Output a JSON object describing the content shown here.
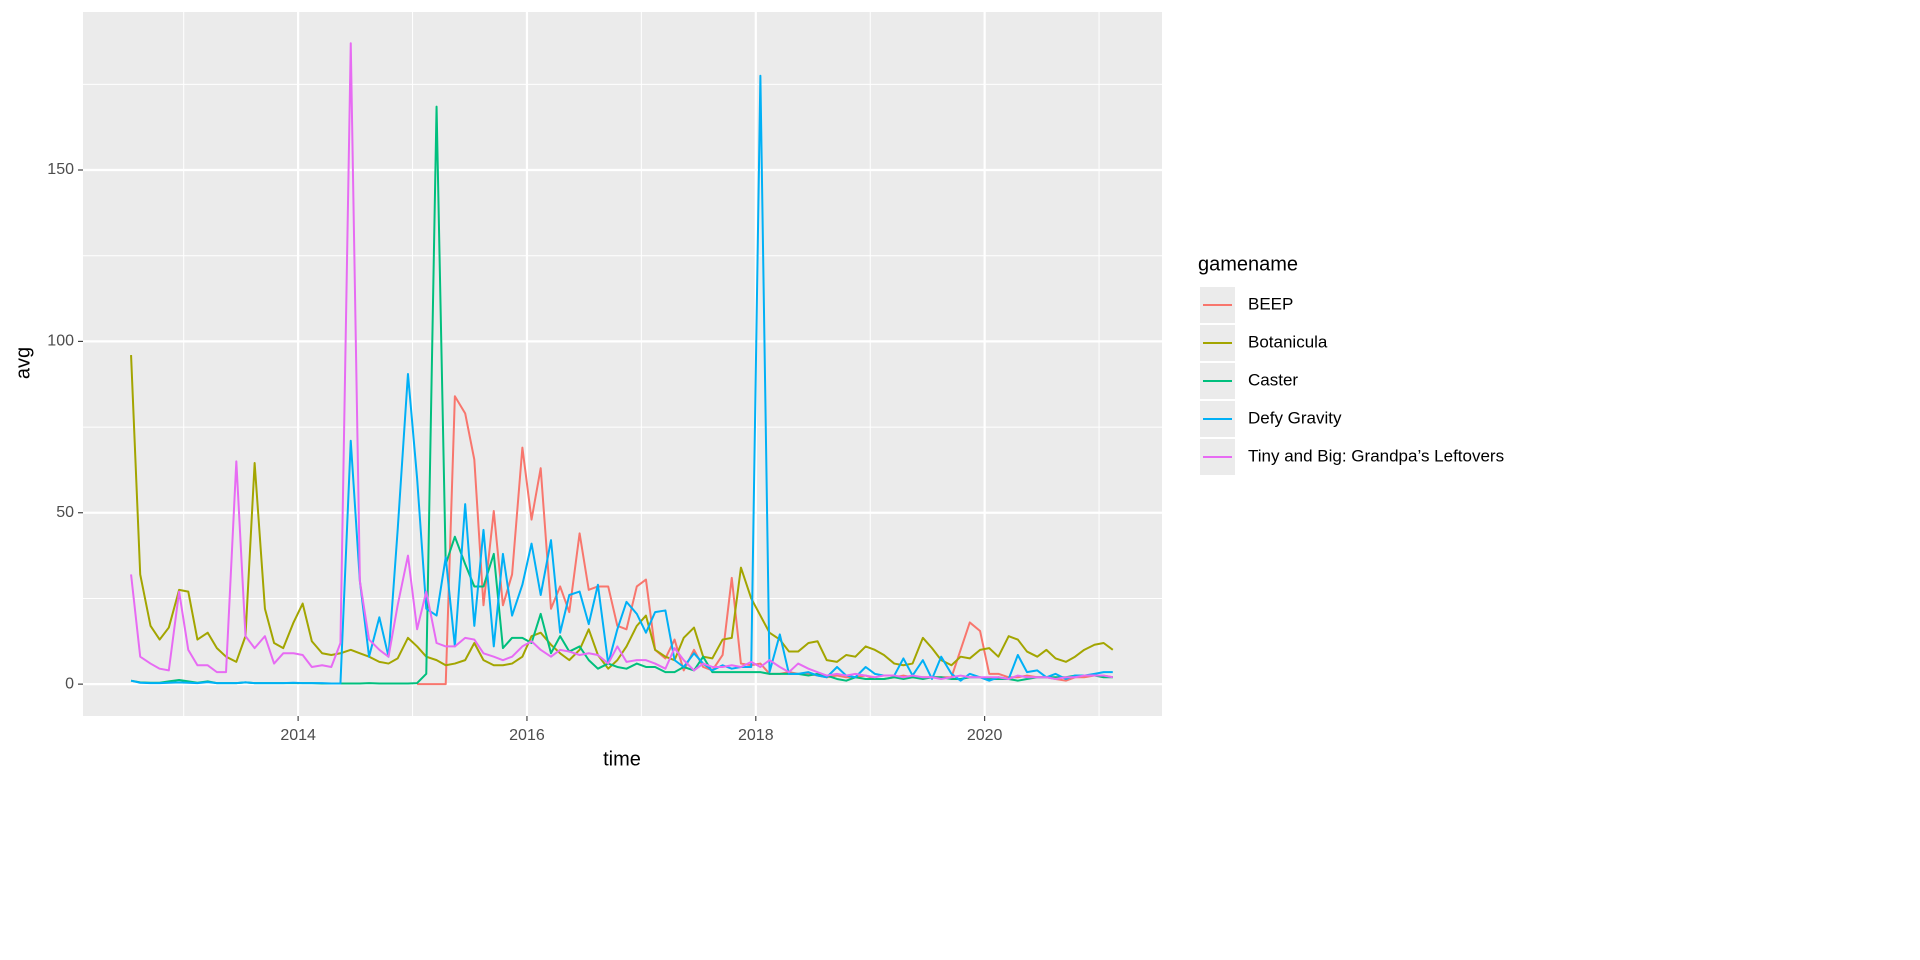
{
  "chart_data": {
    "type": "line",
    "x_label": "time",
    "y_label": "avg",
    "legend_title": "gamename",
    "grid": true,
    "legend_position": "right",
    "xlim": [
      2012.12,
      2021.55
    ],
    "ylim": [
      -9.3,
      196.1
    ],
    "xticks": [
      2014,
      2016,
      2018,
      2020
    ],
    "yticks": [
      0,
      50,
      100,
      150
    ],
    "x": [
      2012.54,
      2012.62,
      2012.71,
      2012.79,
      2012.87,
      2012.96,
      2013.04,
      2013.12,
      2013.21,
      2013.29,
      2013.37,
      2013.46,
      2013.54,
      2013.62,
      2013.71,
      2013.79,
      2013.87,
      2013.96,
      2014.04,
      2014.12,
      2014.21,
      2014.29,
      2014.37,
      2014.46,
      2014.54,
      2014.62,
      2014.71,
      2014.79,
      2014.87,
      2014.96,
      2015.04,
      2015.12,
      2015.21,
      2015.29,
      2015.37,
      2015.46,
      2015.54,
      2015.62,
      2015.71,
      2015.79,
      2015.87,
      2015.96,
      2016.04,
      2016.12,
      2016.21,
      2016.29,
      2016.37,
      2016.46,
      2016.54,
      2016.62,
      2016.71,
      2016.79,
      2016.87,
      2016.96,
      2017.04,
      2017.12,
      2017.21,
      2017.29,
      2017.37,
      2017.46,
      2017.54,
      2017.62,
      2017.71,
      2017.79,
      2017.87,
      2017.96,
      2018.04,
      2018.12,
      2018.21,
      2018.29,
      2018.37,
      2018.46,
      2018.54,
      2018.62,
      2018.71,
      2018.79,
      2018.87,
      2018.96,
      2019.04,
      2019.12,
      2019.21,
      2019.29,
      2019.37,
      2019.46,
      2019.54,
      2019.62,
      2019.71,
      2019.79,
      2019.87,
      2019.96,
      2020.04,
      2020.12,
      2020.21,
      2020.29,
      2020.37,
      2020.46,
      2020.54,
      2020.62,
      2020.71,
      2020.79,
      2020.87,
      2020.96,
      2021.04,
      2021.12
    ],
    "series": [
      {
        "name": "BEEP",
        "color": "#F8766D",
        "values": [
          null,
          null,
          null,
          null,
          null,
          null,
          null,
          null,
          null,
          null,
          null,
          null,
          null,
          null,
          null,
          null,
          null,
          null,
          null,
          null,
          null,
          null,
          null,
          null,
          null,
          null,
          null,
          null,
          null,
          null,
          0,
          0,
          0,
          0,
          84,
          79,
          65.5,
          23,
          50.5,
          23,
          32,
          69,
          48,
          63,
          22,
          28.5,
          21,
          44,
          27.5,
          28.5,
          28.5,
          17,
          16,
          28.5,
          30.5,
          10,
          7.5,
          13,
          4,
          10,
          5,
          4,
          8.5,
          31,
          6,
          5.5,
          6,
          3,
          3,
          3.5,
          3,
          3,
          2.5,
          2,
          2.5,
          2,
          2,
          2.5,
          1.5,
          1.5,
          2,
          2.5,
          2,
          2,
          2,
          2,
          2,
          10,
          18,
          15.5,
          3,
          3,
          2,
          2,
          2.5,
          2,
          2,
          1.5,
          1,
          2,
          2,
          2.5,
          2.5,
          2
        ]
      },
      {
        "name": "Botanicula",
        "color": "#A3A500",
        "values": [
          96,
          32,
          17,
          13,
          16.5,
          27.5,
          27,
          13,
          15,
          10.5,
          8,
          6.5,
          14,
          64.5,
          22,
          12,
          10.5,
          18,
          23.5,
          12.5,
          9,
          8.5,
          9,
          10,
          9,
          8,
          6.5,
          6,
          7.5,
          13.5,
          11,
          8,
          7,
          5.5,
          6,
          7,
          12,
          7,
          5.5,
          5.5,
          6,
          8,
          14,
          15,
          11.5,
          9,
          7,
          10,
          16,
          8.5,
          4.5,
          7,
          11,
          17,
          20,
          10,
          8,
          7,
          13.5,
          16.5,
          8,
          7.5,
          13,
          13.5,
          34,
          25,
          20,
          15,
          13,
          9.5,
          9.5,
          12,
          12.5,
          7,
          6.5,
          8.5,
          8,
          11,
          10,
          8.5,
          6,
          5.5,
          6,
          13.5,
          10.5,
          7,
          5.5,
          8,
          7.5,
          10,
          10.5,
          8,
          14,
          13,
          9.5,
          8,
          10,
          7.5,
          6.5,
          8,
          10,
          11.5,
          12,
          10
        ]
      },
      {
        "name": "Caster",
        "color": "#00BF7D",
        "values": [
          1,
          0.5,
          0.4,
          0.4,
          0.8,
          1.2,
          0.8,
          0.4,
          0.8,
          0.3,
          0.3,
          0.3,
          0.5,
          0.3,
          0.3,
          0.3,
          0.3,
          0.3,
          0.3,
          0.3,
          0.2,
          0.2,
          0.2,
          0.2,
          0.2,
          0.3,
          0.2,
          0.2,
          0.2,
          0.2,
          0.3,
          3,
          168.5,
          35,
          43,
          35,
          28.5,
          28.5,
          38,
          10.5,
          13.5,
          13.5,
          12,
          20.5,
          9,
          14,
          9.5,
          11,
          7,
          4.5,
          6,
          5,
          4.5,
          6,
          5,
          5,
          3.5,
          3.5,
          5,
          4,
          8,
          3.5,
          3.5,
          3.5,
          3.5,
          3.5,
          3.5,
          3,
          3,
          3,
          3,
          2.5,
          3,
          2.5,
          1.5,
          1,
          2,
          1.5,
          1.5,
          1.5,
          2,
          1.5,
          2,
          1.5,
          2,
          2,
          1.5,
          1.5,
          2,
          2,
          1.5,
          1.5,
          1.5,
          1,
          1.5,
          2,
          2,
          2,
          2,
          2.5,
          2.5,
          2.5,
          2,
          2
        ]
      },
      {
        "name": "Defy Gravity",
        "color": "#00B0F6",
        "values": [
          1,
          0.4,
          0.3,
          0.3,
          0.4,
          0.5,
          0.4,
          0.3,
          0.6,
          0.3,
          0.3,
          0.3,
          0.5,
          0.3,
          0.3,
          0.3,
          0.3,
          0.4,
          0.3,
          0.3,
          0.3,
          0.2,
          0.2,
          71,
          30,
          8,
          19.5,
          8,
          45,
          90.5,
          60,
          22,
          20,
          37,
          11,
          52.5,
          17,
          45,
          11,
          38,
          20,
          29,
          41,
          26,
          42,
          15,
          26,
          27,
          17.5,
          29,
          6,
          16,
          24,
          20.5,
          15,
          21,
          21.5,
          7,
          5,
          9,
          6,
          4,
          5.5,
          4.5,
          5,
          5,
          177.5,
          3.5,
          14.5,
          3,
          3,
          3.5,
          2.5,
          2,
          5,
          2.5,
          2,
          5,
          3,
          2.5,
          2.5,
          7.5,
          2.5,
          7,
          1.5,
          8,
          3,
          1,
          3,
          2,
          1,
          2,
          1.5,
          8.5,
          3.5,
          4,
          2,
          3,
          1.5,
          2.5,
          2.5,
          3,
          3.5,
          3.5
        ]
      },
      {
        "name": "Tiny and Big: Grandpa’s Leftovers",
        "color": "#E76BF3",
        "values": [
          32,
          8,
          6,
          4.5,
          4,
          27,
          10,
          5.5,
          5.5,
          3.5,
          3.5,
          65,
          14,
          10.5,
          14,
          6,
          9,
          9,
          8.5,
          5,
          5.5,
          5,
          12,
          187,
          30,
          13,
          10,
          8,
          23,
          37.5,
          16,
          27,
          12,
          11,
          11,
          13.5,
          13,
          9,
          8,
          7,
          8,
          11,
          12.5,
          10,
          8,
          10,
          9.5,
          8.5,
          9,
          8.5,
          6,
          11,
          6.5,
          7,
          7,
          6,
          4.5,
          10.5,
          7,
          4,
          6,
          5,
          5,
          5.5,
          5,
          6.5,
          5,
          7,
          5,
          3.5,
          6,
          4.5,
          3.5,
          2.5,
          3,
          2.5,
          3,
          2.5,
          2,
          2.5,
          2.5,
          2,
          2.5,
          2,
          2,
          1.5,
          2,
          2.5,
          2,
          2,
          2,
          2,
          1.5,
          2.5,
          2,
          2,
          2,
          1.5,
          2,
          2,
          2.5,
          2.5,
          2.5,
          2
        ]
      }
    ]
  }
}
